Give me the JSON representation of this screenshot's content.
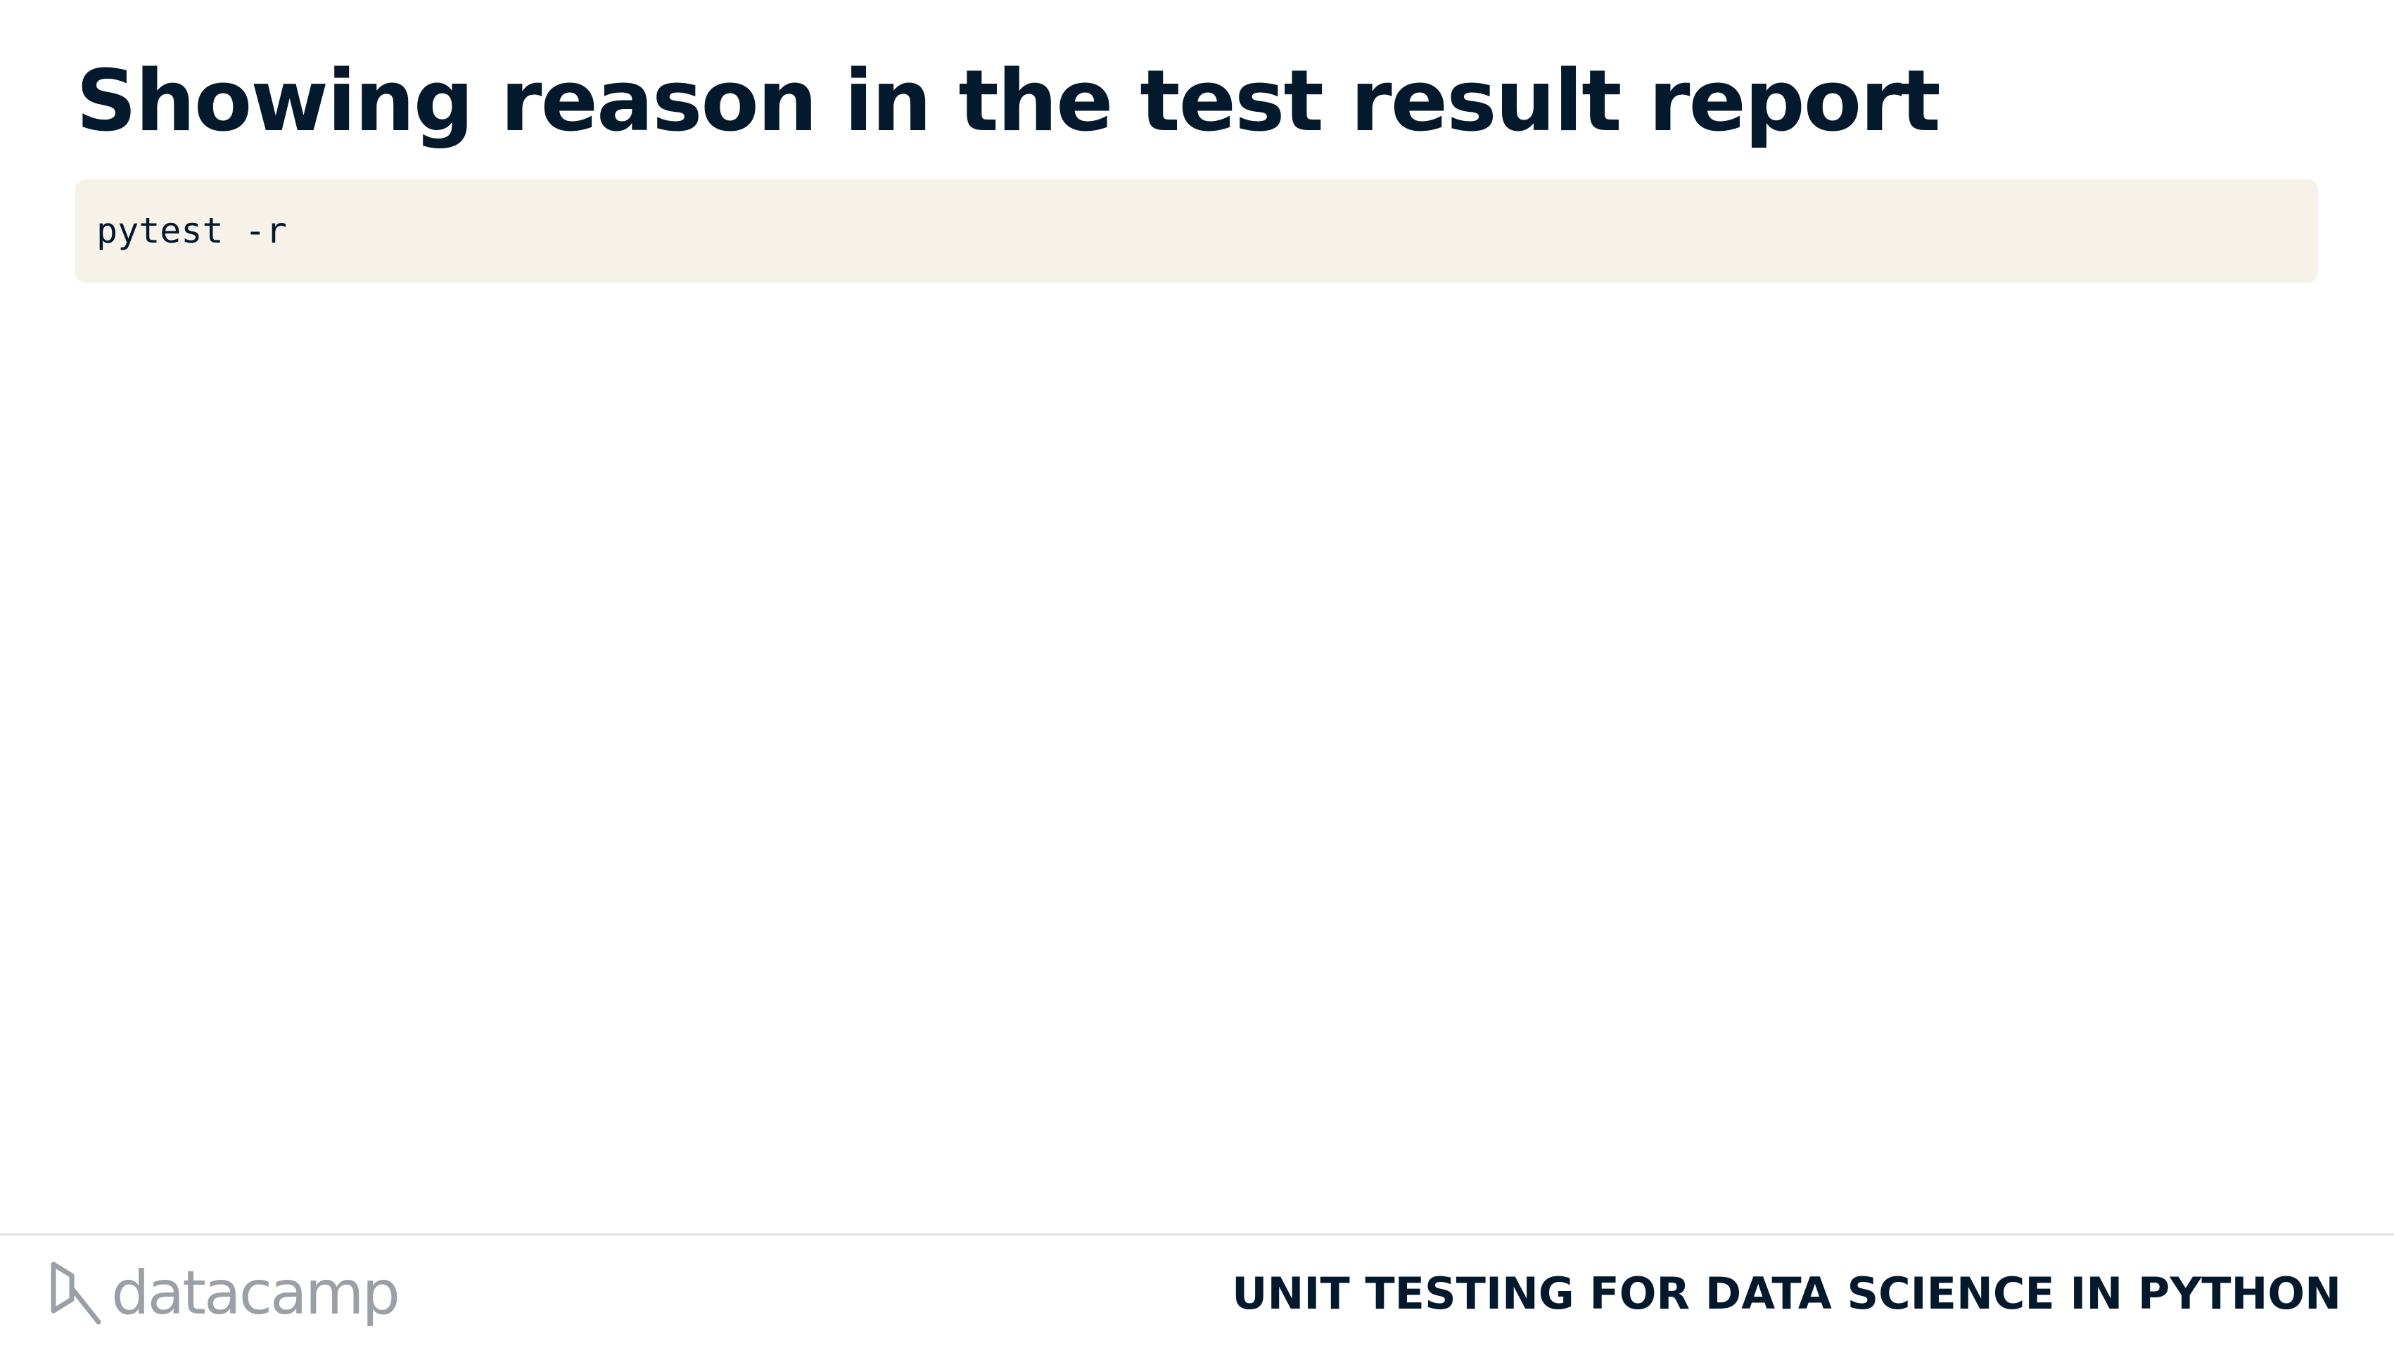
{
  "slide": {
    "title": "Showing reason in the test result report",
    "code": "pytest -r"
  },
  "footer": {
    "brand": "datacamp",
    "brand_icon": "datacamp-logo-icon",
    "course_title": "UNIT TESTING FOR DATA SCIENCE IN PYTHON"
  },
  "colors": {
    "title": "#05192d",
    "code_background": "#f6f2ea",
    "brand_gray": "#9aa0a6",
    "divider": "#e3e3e1"
  }
}
